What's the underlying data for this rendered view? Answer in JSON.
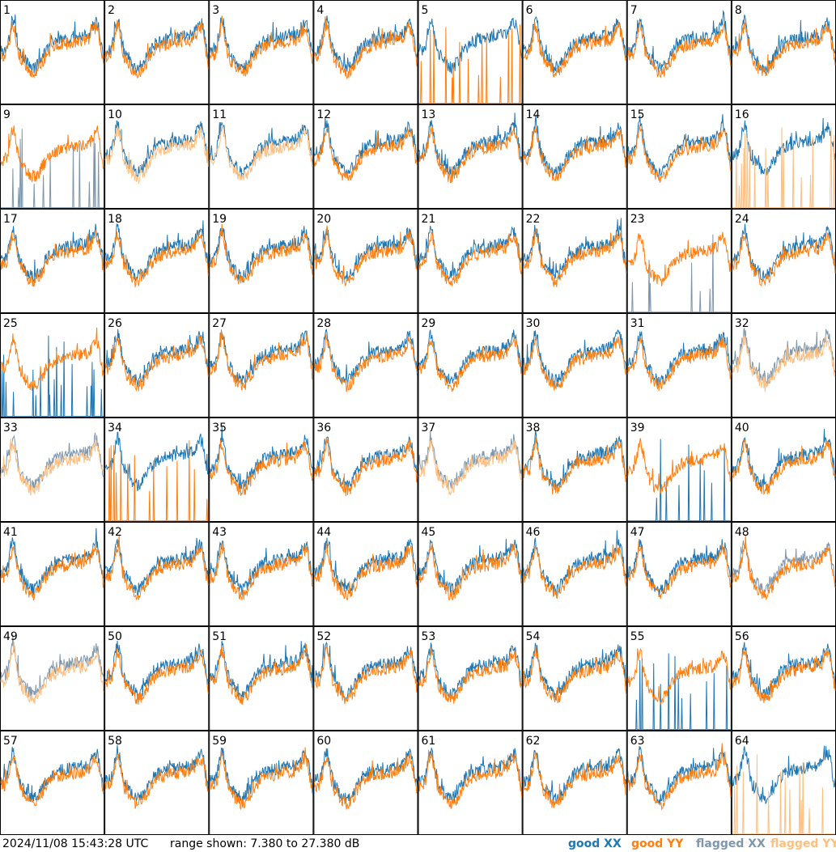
{
  "footer": {
    "timestamp": "2024/11/08 15:43:28 UTC",
    "range_text": "range shown: 7.380 to 27.380 dB"
  },
  "legend": [
    {
      "label": "good XX",
      "color": "#1f77b4"
    },
    {
      "label": "good YY",
      "color": "#ff7f0e"
    },
    {
      "label": "flagged XX",
      "color": "#7f97ad"
    },
    {
      "label": "flagged YY",
      "color": "#ffbf80"
    }
  ],
  "chart_data": {
    "type": "line",
    "layout": "small-multiples 8x8",
    "ylim": [
      7.38,
      27.38
    ],
    "yunit": "dB",
    "panel_labels": [
      "1",
      "2",
      "3",
      "4",
      "5",
      "6",
      "7",
      "8",
      "9",
      "10",
      "11",
      "12",
      "13",
      "14",
      "15",
      "16",
      "17",
      "18",
      "19",
      "20",
      "21",
      "22",
      "23",
      "24",
      "25",
      "26",
      "27",
      "28",
      "29",
      "30",
      "31",
      "32",
      "33",
      "34",
      "35",
      "36",
      "37",
      "38",
      "39",
      "40",
      "41",
      "42",
      "43",
      "44",
      "45",
      "46",
      "47",
      "48",
      "49",
      "50",
      "51",
      "52",
      "53",
      "54",
      "55",
      "56",
      "57",
      "58",
      "59",
      "60",
      "61",
      "62",
      "63",
      "64"
    ],
    "panels": [
      {
        "label": "1",
        "xx": "good",
        "yy": "good"
      },
      {
        "label": "2",
        "xx": "good",
        "yy": "good"
      },
      {
        "label": "3",
        "xx": "good",
        "yy": "good"
      },
      {
        "label": "4",
        "xx": "good",
        "yy": "good"
      },
      {
        "label": "5",
        "xx": "good",
        "yy": "good",
        "yy_spiky": true
      },
      {
        "label": "6",
        "xx": "good",
        "yy": "good"
      },
      {
        "label": "7",
        "xx": "good",
        "yy": "good"
      },
      {
        "label": "8",
        "xx": "good",
        "yy": "good"
      },
      {
        "label": "9",
        "xx": "flagged",
        "yy": "good",
        "xx_spiky": true
      },
      {
        "label": "10",
        "xx": "good",
        "yy": "flagged"
      },
      {
        "label": "11",
        "xx": "good",
        "yy": "flagged"
      },
      {
        "label": "12",
        "xx": "good",
        "yy": "good"
      },
      {
        "label": "13",
        "xx": "good",
        "yy": "good"
      },
      {
        "label": "14",
        "xx": "good",
        "yy": "good"
      },
      {
        "label": "15",
        "xx": "good",
        "yy": "good"
      },
      {
        "label": "16",
        "xx": "good",
        "yy": "flagged",
        "yy_spiky": true
      },
      {
        "label": "17",
        "xx": "good",
        "yy": "good"
      },
      {
        "label": "18",
        "xx": "good",
        "yy": "good"
      },
      {
        "label": "19",
        "xx": "good",
        "yy": "good"
      },
      {
        "label": "20",
        "xx": "good",
        "yy": "good"
      },
      {
        "label": "21",
        "xx": "good",
        "yy": "good"
      },
      {
        "label": "22",
        "xx": "good",
        "yy": "good"
      },
      {
        "label": "23",
        "xx": "flagged",
        "yy": "good",
        "xx_spiky": true
      },
      {
        "label": "24",
        "xx": "good",
        "yy": "good"
      },
      {
        "label": "25",
        "xx": "good",
        "yy": "good",
        "xx_spiky": true
      },
      {
        "label": "26",
        "xx": "good",
        "yy": "good"
      },
      {
        "label": "27",
        "xx": "good",
        "yy": "good"
      },
      {
        "label": "28",
        "xx": "good",
        "yy": "good"
      },
      {
        "label": "29",
        "xx": "good",
        "yy": "good"
      },
      {
        "label": "30",
        "xx": "good",
        "yy": "good"
      },
      {
        "label": "31",
        "xx": "good",
        "yy": "good"
      },
      {
        "label": "32",
        "xx": "flagged",
        "yy": "flagged"
      },
      {
        "label": "33",
        "xx": "flagged",
        "yy": "flagged"
      },
      {
        "label": "34",
        "xx": "good",
        "yy": "good",
        "yy_spiky": true
      },
      {
        "label": "35",
        "xx": "good",
        "yy": "good"
      },
      {
        "label": "36",
        "xx": "good",
        "yy": "good"
      },
      {
        "label": "37",
        "xx": "flagged",
        "yy": "flagged"
      },
      {
        "label": "38",
        "xx": "good",
        "yy": "good"
      },
      {
        "label": "39",
        "xx": "good",
        "yy": "good",
        "xx_spiky": true
      },
      {
        "label": "40",
        "xx": "good",
        "yy": "good"
      },
      {
        "label": "41",
        "xx": "good",
        "yy": "good"
      },
      {
        "label": "42",
        "xx": "good",
        "yy": "good"
      },
      {
        "label": "43",
        "xx": "good",
        "yy": "good"
      },
      {
        "label": "44",
        "xx": "good",
        "yy": "good"
      },
      {
        "label": "45",
        "xx": "good",
        "yy": "good"
      },
      {
        "label": "46",
        "xx": "good",
        "yy": "good"
      },
      {
        "label": "47",
        "xx": "good",
        "yy": "good"
      },
      {
        "label": "48",
        "xx": "flagged",
        "yy": "good"
      },
      {
        "label": "49",
        "xx": "flagged",
        "yy": "flagged"
      },
      {
        "label": "50",
        "xx": "good",
        "yy": "good"
      },
      {
        "label": "51",
        "xx": "good",
        "yy": "good"
      },
      {
        "label": "52",
        "xx": "good",
        "yy": "good"
      },
      {
        "label": "53",
        "xx": "good",
        "yy": "good"
      },
      {
        "label": "54",
        "xx": "good",
        "yy": "good"
      },
      {
        "label": "55",
        "xx": "good",
        "yy": "good",
        "xx_spiky": true
      },
      {
        "label": "56",
        "xx": "good",
        "yy": "good"
      },
      {
        "label": "57",
        "xx": "good",
        "yy": "good"
      },
      {
        "label": "58",
        "xx": "good",
        "yy": "good"
      },
      {
        "label": "59",
        "xx": "good",
        "yy": "good"
      },
      {
        "label": "60",
        "xx": "good",
        "yy": "good"
      },
      {
        "label": "61",
        "xx": "good",
        "yy": "good"
      },
      {
        "label": "62",
        "xx": "good",
        "yy": "good"
      },
      {
        "label": "63",
        "xx": "good",
        "yy": "good"
      },
      {
        "label": "64",
        "xx": "good",
        "yy": "flagged",
        "yy_spiky": true
      }
    ]
  }
}
